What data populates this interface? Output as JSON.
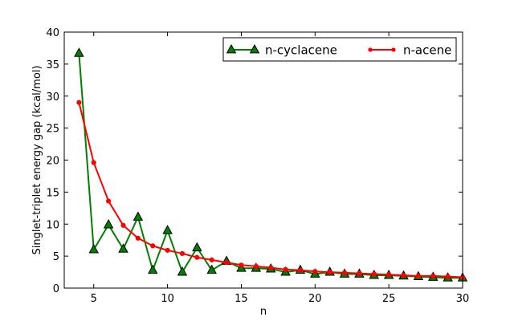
{
  "chart_data": {
    "type": "line",
    "xlabel": "n",
    "ylabel": "Singlet-triplet energy gap (kcal/mol)",
    "xlim": [
      3,
      30
    ],
    "ylim": [
      0,
      40
    ],
    "xticks": [
      5,
      10,
      15,
      20,
      25,
      30
    ],
    "yticks": [
      0,
      5,
      10,
      15,
      20,
      25,
      30,
      35,
      40
    ],
    "grid": false,
    "legend_position": "top-right",
    "series": [
      {
        "name": "n-cyclacene",
        "color": "#008000",
        "marker": "triangle",
        "x": [
          4,
          5,
          6,
          7,
          8,
          9,
          10,
          11,
          12,
          13,
          14,
          15,
          16,
          17,
          18,
          19,
          20,
          21,
          22,
          23,
          24,
          25,
          26,
          27,
          28,
          29,
          30
        ],
        "y": [
          36.7,
          6.0,
          9.9,
          6.1,
          11.1,
          2.8,
          9.0,
          2.5,
          6.3,
          2.8,
          4.2,
          3.1,
          3.1,
          3.0,
          2.5,
          2.8,
          2.2,
          2.5,
          2.2,
          2.2,
          2.0,
          2.0,
          1.9,
          1.8,
          1.7,
          1.6,
          1.6
        ]
      },
      {
        "name": "n-acene",
        "color": "#ff0000",
        "marker": "circle",
        "x": [
          4,
          5,
          6,
          7,
          8,
          9,
          10,
          11,
          12,
          13,
          14,
          15,
          16,
          17,
          18,
          19,
          20,
          21,
          22,
          23,
          24,
          25,
          26,
          27,
          28,
          29,
          30
        ],
        "y": [
          29.0,
          19.6,
          13.6,
          9.8,
          7.8,
          6.6,
          5.9,
          5.4,
          4.8,
          4.4,
          4.0,
          3.6,
          3.4,
          3.2,
          2.9,
          2.8,
          2.6,
          2.5,
          2.4,
          2.3,
          2.2,
          2.1,
          2.0,
          1.9,
          1.9,
          1.8,
          1.7
        ]
      }
    ]
  }
}
